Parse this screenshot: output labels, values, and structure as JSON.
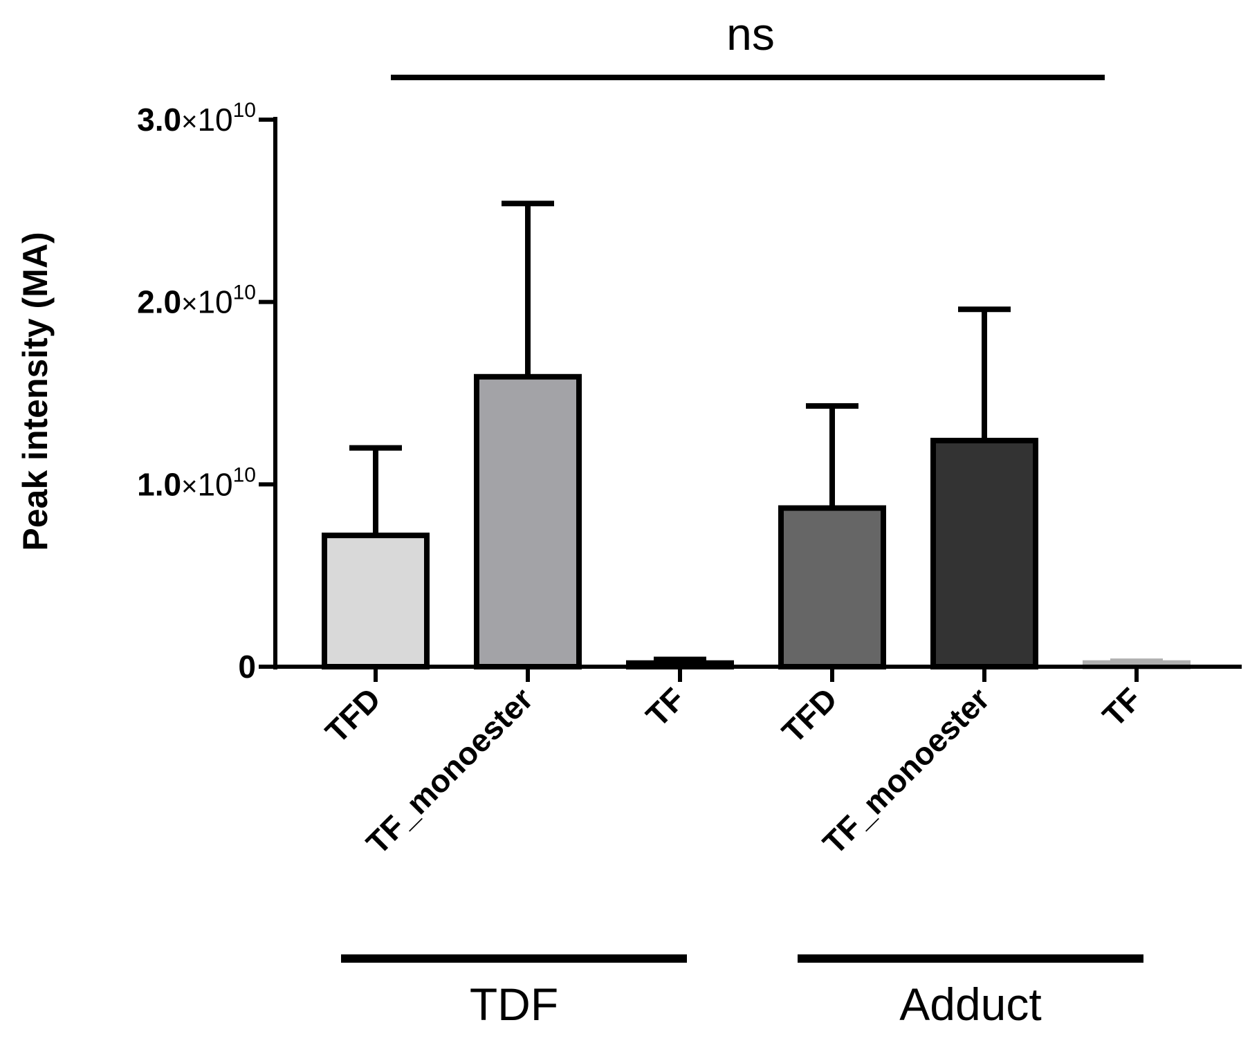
{
  "chart_data": {
    "type": "bar",
    "title": "",
    "xlabel": "",
    "ylabel": "Peak intensity (MA)",
    "ylim": [
      0,
      30000000000
    ],
    "grid": false,
    "legend": "none",
    "y_ticks": [
      {
        "value": 0,
        "label": "0",
        "has_exponent": false
      },
      {
        "value": 10000000000,
        "mantissa": "1.0",
        "times": "×",
        "base": "10",
        "exponent": "10",
        "has_exponent": true
      },
      {
        "value": 20000000000,
        "mantissa": "2.0",
        "times": "×",
        "base": "10",
        "exponent": "10",
        "has_exponent": true
      },
      {
        "value": 30000000000,
        "mantissa": "3.0",
        "times": "×",
        "base": "10",
        "exponent": "10",
        "has_exponent": true
      }
    ],
    "categories": [
      "TFD",
      "TF_monoester",
      "TF",
      "TFD",
      "TF_monoester",
      "TF"
    ],
    "values": [
      7200000000,
      15900000000,
      200000000,
      8700000000,
      12400000000,
      200000000
    ],
    "error_upper": [
      12000000000,
      25400000000,
      400000000,
      14300000000,
      19600000000,
      300000000
    ],
    "bar_colors": [
      "#d9d9d9",
      "#a3a3a7",
      "#202020",
      "#666666",
      "#333333",
      "#b8b8b8"
    ],
    "outline_colors": [
      "#000000",
      "#000000",
      "#000000",
      "#000000",
      "#000000",
      "#b0b0b0"
    ],
    "groups": [
      {
        "name": "TDF",
        "start": 0,
        "end": 2
      },
      {
        "name": "Adduct",
        "start": 3,
        "end": 5
      }
    ],
    "annotations": [
      {
        "text": "ns",
        "from": 0,
        "to": 5
      }
    ]
  }
}
